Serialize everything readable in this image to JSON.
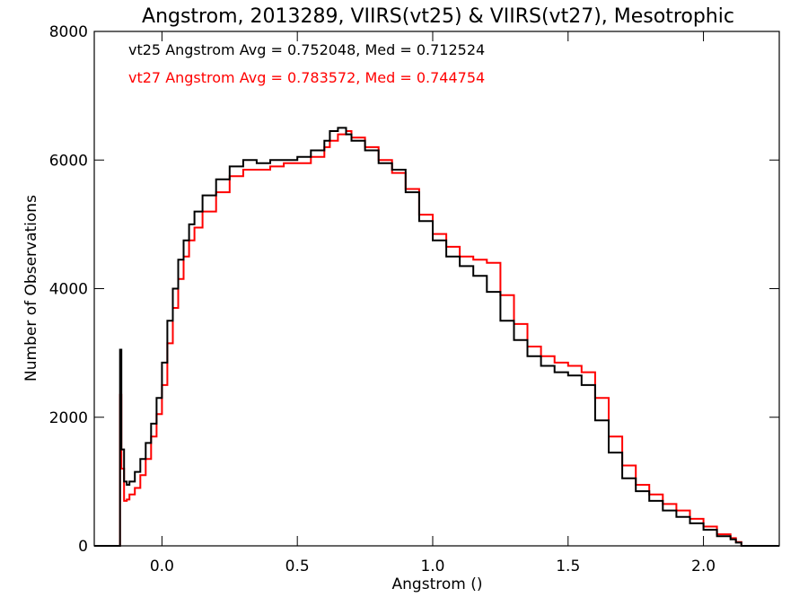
{
  "chart_data": {
    "type": "line",
    "title": "Angstrom, 2013289, VIIRS(vt25) & VIIRS(vt27), Mesotrophic",
    "xlabel": "Angstrom ()",
    "ylabel": "Number of Observations",
    "xlim": [
      -0.25,
      2.28
    ],
    "ylim": [
      0,
      8000
    ],
    "xticks": [
      0.0,
      0.5,
      1.0,
      1.5,
      2.0
    ],
    "xtick_labels": [
      "0.0",
      "0.5",
      "1.0",
      "1.5",
      "2.0"
    ],
    "yticks": [
      0,
      2000,
      4000,
      6000,
      8000
    ],
    "ytick_labels": [
      "0",
      "2000",
      "4000",
      "6000",
      "8000"
    ],
    "grid": false,
    "annotations": [
      {
        "text": "vt25 Angstrom Avg = 0.752048, Med = 0.712524",
        "color": "#000000"
      },
      {
        "text": "vt27 Angstrom Avg = 0.783572, Med = 0.744754",
        "color": "#ff0000"
      }
    ],
    "series": [
      {
        "color": "#000000",
        "x": [
          -0.25,
          -0.16,
          -0.155,
          -0.15,
          -0.14,
          -0.13,
          -0.12,
          -0.1,
          -0.08,
          -0.06,
          -0.04,
          -0.02,
          0.0,
          0.02,
          0.04,
          0.06,
          0.08,
          0.1,
          0.12,
          0.15,
          0.2,
          0.25,
          0.3,
          0.35,
          0.4,
          0.45,
          0.5,
          0.55,
          0.6,
          0.62,
          0.65,
          0.68,
          0.7,
          0.75,
          0.8,
          0.85,
          0.9,
          0.95,
          1.0,
          1.05,
          1.1,
          1.15,
          1.2,
          1.25,
          1.3,
          1.35,
          1.4,
          1.45,
          1.5,
          1.55,
          1.6,
          1.65,
          1.7,
          1.75,
          1.8,
          1.85,
          1.9,
          1.95,
          2.0,
          2.05,
          2.1,
          2.12,
          2.14,
          2.28
        ],
        "values": [
          0,
          0,
          3050,
          1500,
          1000,
          950,
          1000,
          1150,
          1350,
          1600,
          1900,
          2300,
          2850,
          3500,
          4000,
          4450,
          4750,
          5000,
          5200,
          5450,
          5700,
          5900,
          6000,
          5950,
          6000,
          6000,
          6050,
          6150,
          6300,
          6450,
          6500,
          6400,
          6300,
          6150,
          5950,
          5850,
          5500,
          5050,
          4750,
          4500,
          4350,
          4200,
          3950,
          3500,
          3200,
          2950,
          2800,
          2700,
          2650,
          2500,
          1950,
          1450,
          1050,
          850,
          700,
          550,
          450,
          350,
          250,
          150,
          100,
          50,
          0,
          0
        ]
      },
      {
        "color": "#ff0000",
        "x": [
          -0.25,
          -0.16,
          -0.155,
          -0.15,
          -0.14,
          -0.13,
          -0.12,
          -0.1,
          -0.08,
          -0.06,
          -0.04,
          -0.02,
          0.0,
          0.02,
          0.04,
          0.06,
          0.08,
          0.1,
          0.12,
          0.15,
          0.2,
          0.25,
          0.3,
          0.35,
          0.4,
          0.45,
          0.5,
          0.55,
          0.6,
          0.62,
          0.65,
          0.68,
          0.7,
          0.75,
          0.8,
          0.85,
          0.9,
          0.95,
          1.0,
          1.05,
          1.1,
          1.15,
          1.2,
          1.25,
          1.3,
          1.35,
          1.4,
          1.45,
          1.5,
          1.55,
          1.6,
          1.65,
          1.7,
          1.75,
          1.8,
          1.85,
          1.9,
          1.95,
          2.0,
          2.05,
          2.1,
          2.12,
          2.14,
          2.28
        ],
        "values": [
          0,
          0,
          2350,
          1200,
          700,
          720,
          800,
          900,
          1100,
          1350,
          1700,
          2050,
          2500,
          3150,
          3700,
          4150,
          4500,
          4750,
          4950,
          5200,
          5500,
          5750,
          5850,
          5850,
          5900,
          5950,
          5950,
          6050,
          6200,
          6300,
          6400,
          6450,
          6350,
          6200,
          6000,
          5800,
          5550,
          5150,
          4850,
          4650,
          4500,
          4450,
          4400,
          3900,
          3450,
          3100,
          2950,
          2850,
          2800,
          2700,
          2300,
          1700,
          1250,
          950,
          800,
          650,
          550,
          420,
          300,
          180,
          120,
          60,
          0,
          0
        ]
      }
    ]
  }
}
